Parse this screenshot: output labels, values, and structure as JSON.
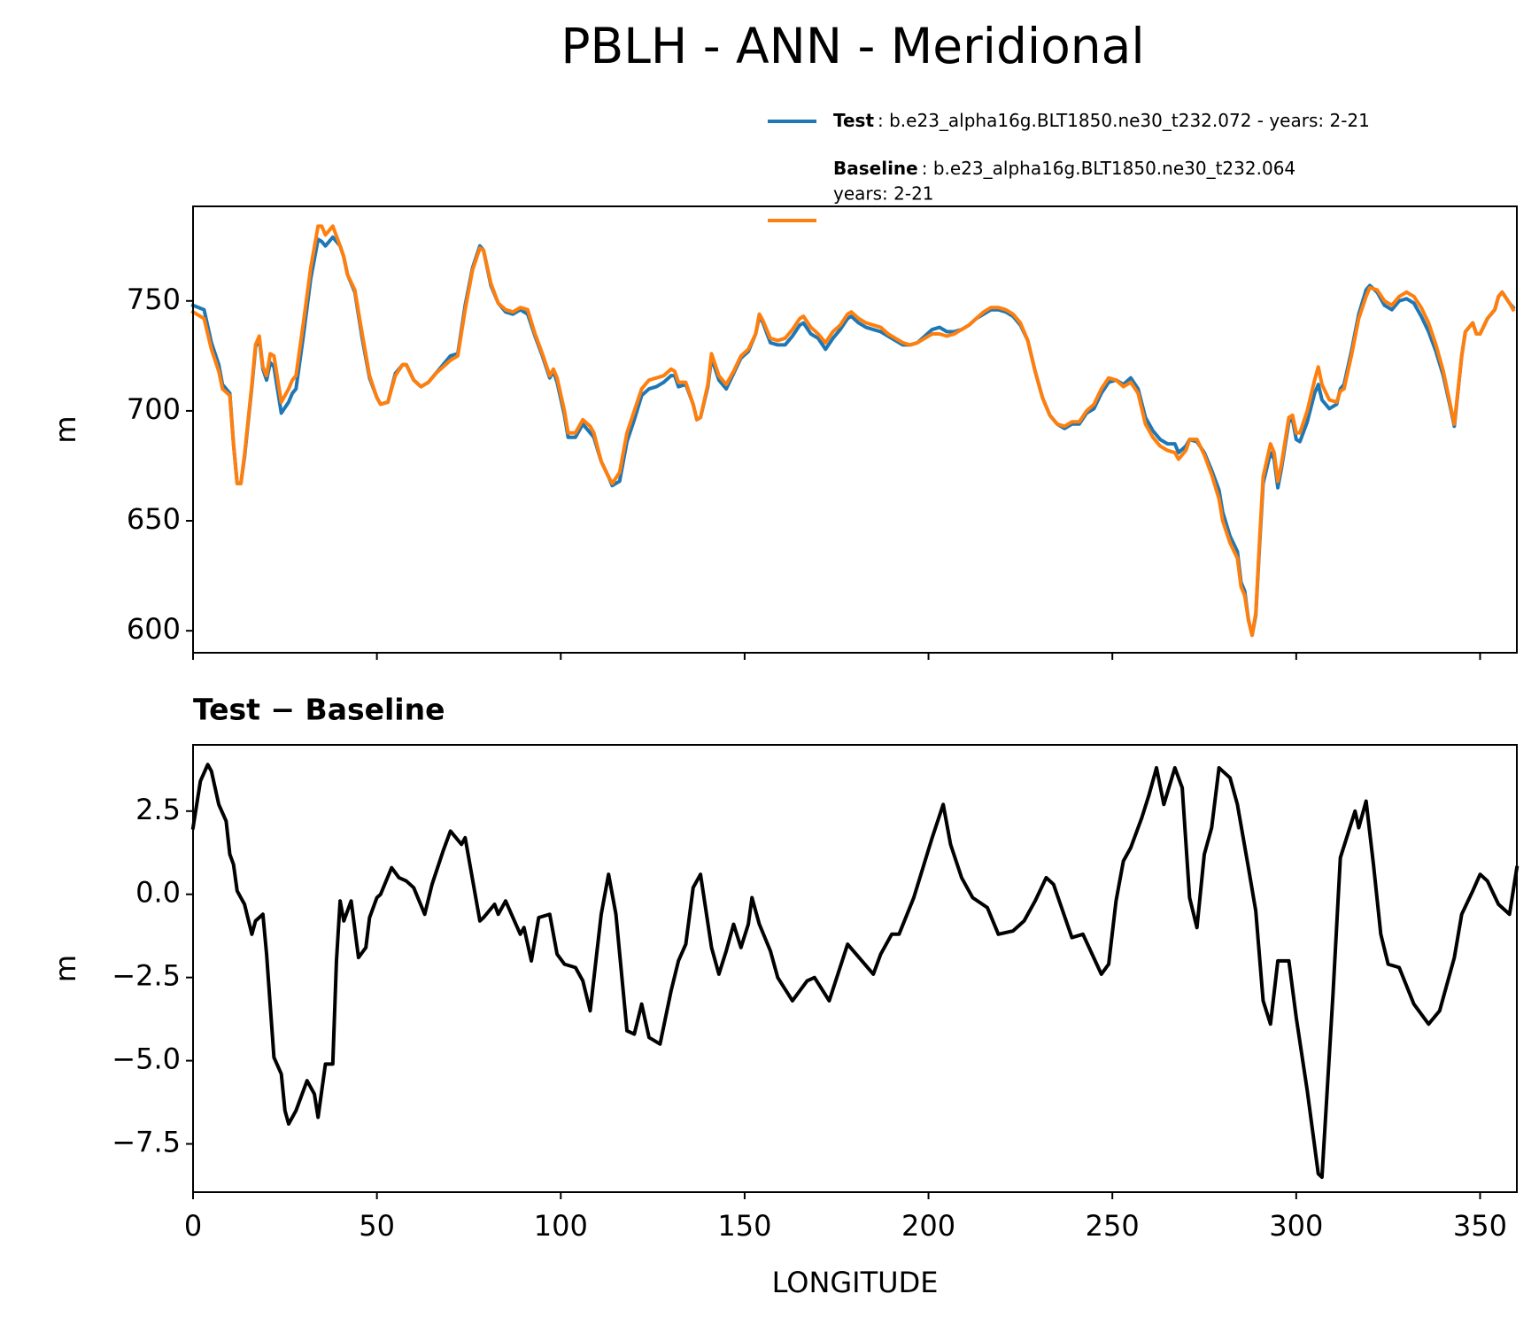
{
  "chart_data": [
    {
      "type": "line",
      "title": "PBLH - ANN - Meridional",
      "ylabel": "m",
      "legend": "upper right",
      "xlim": [
        0,
        360
      ],
      "xticks": [
        0,
        50,
        100,
        150,
        200,
        250,
        300,
        350
      ],
      "ylim": [
        590,
        793
      ],
      "yticks": [
        600,
        650,
        700,
        750
      ],
      "x": [
        0,
        3,
        5,
        7,
        8,
        10,
        11,
        12,
        13,
        14,
        16,
        17,
        18,
        19,
        20,
        21,
        22,
        24,
        26,
        27,
        28,
        30,
        32,
        34,
        35,
        36,
        37,
        38,
        40,
        41,
        42,
        44,
        46,
        48,
        50,
        51,
        53,
        55,
        57,
        58,
        60,
        62,
        64,
        66,
        68,
        70,
        72,
        74,
        76,
        78,
        79,
        81,
        83,
        85,
        87,
        89,
        91,
        93,
        95,
        97,
        98,
        99,
        101,
        102,
        104,
        106,
        108,
        109,
        111,
        113,
        114,
        116,
        118,
        120,
        122,
        124,
        126,
        128,
        130,
        131,
        132,
        134,
        136,
        137,
        138,
        140,
        141,
        143,
        145,
        147,
        149,
        151,
        153,
        154,
        155,
        157,
        159,
        161,
        163,
        165,
        166,
        168,
        170,
        172,
        174,
        176,
        178,
        179,
        181,
        183,
        185,
        187,
        189,
        191,
        193,
        195,
        197,
        199,
        201,
        203,
        205,
        207,
        209,
        211,
        213,
        215,
        217,
        219,
        221,
        223,
        225,
        227,
        229,
        231,
        233,
        235,
        237,
        239,
        241,
        243,
        245,
        247,
        249,
        251,
        253,
        255,
        257,
        259,
        261,
        263,
        265,
        267,
        268,
        270,
        271,
        273,
        275,
        277,
        279,
        280,
        282,
        284,
        285,
        286,
        287,
        288,
        289,
        290,
        291,
        293,
        294,
        295,
        296,
        298,
        299,
        300,
        301,
        303,
        305,
        306,
        307,
        309,
        311,
        312,
        313,
        315,
        317,
        319,
        320,
        322,
        324,
        326,
        328,
        330,
        332,
        334,
        336,
        338,
        340,
        342,
        343,
        345,
        346,
        348,
        349,
        350,
        352,
        354,
        355,
        356,
        358,
        359
      ],
      "series": [
        {
          "name": "Test",
          "description": [
            ": b.e23_alpha16g.BLT1850.ne30_t232.072 - years: 2-21"
          ],
          "color": "#1f77b4",
          "values": [
            748,
            746,
            731,
            721,
            712,
            708,
            685,
            667,
            667,
            679,
            711,
            729,
            733,
            719,
            714,
            722,
            720,
            699,
            704,
            708,
            710,
            734,
            760,
            778,
            777,
            775,
            777,
            779,
            775,
            770,
            762,
            754,
            733,
            715,
            706,
            703,
            704,
            717,
            721,
            721,
            714,
            711,
            713,
            717,
            721,
            725,
            726,
            748,
            765,
            775,
            773,
            757,
            749,
            745,
            744,
            746,
            744,
            734,
            725,
            715,
            718,
            713,
            698,
            688,
            688,
            694,
            690,
            688,
            677,
            670,
            666,
            668,
            686,
            696,
            707,
            710,
            711,
            713,
            716,
            716,
            711,
            712,
            703,
            696,
            697,
            711,
            724,
            714,
            710,
            717,
            724,
            727,
            735,
            743,
            740,
            731,
            730,
            730,
            734,
            739,
            740,
            735,
            733,
            728,
            733,
            737,
            742,
            743,
            740,
            738,
            737,
            736,
            734,
            732,
            730,
            730,
            731,
            734,
            737,
            738,
            736,
            736,
            737,
            739,
            742,
            744,
            746,
            746,
            745,
            743,
            739,
            732,
            718,
            706,
            698,
            694,
            692,
            694,
            694,
            699,
            701,
            708,
            713,
            714,
            712,
            715,
            710,
            697,
            691,
            687,
            685,
            685,
            681,
            684,
            687,
            686,
            681,
            673,
            664,
            654,
            643,
            636,
            622,
            618,
            605,
            598,
            607,
            638,
            667,
            681,
            678,
            665,
            674,
            695,
            696,
            687,
            686,
            695,
            708,
            712,
            705,
            701,
            703,
            710,
            712,
            727,
            744,
            755,
            757,
            754,
            748,
            746,
            750,
            751,
            749,
            743,
            736,
            727,
            716,
            701,
            693,
            725,
            736,
            740,
            735,
            735,
            742,
            746,
            752,
            754,
            749,
            747
          ]
        },
        {
          "name": "Baseline",
          "description": [
            ": b.e23_alpha16g.BLT1850.ne30_t232.064",
            "years: 2-21"
          ],
          "color": "#ff7f0e",
          "values": [
            745,
            742,
            728,
            718,
            710,
            707,
            685,
            667,
            667,
            680,
            712,
            730,
            734,
            720,
            716,
            726,
            725,
            704,
            710,
            714,
            716,
            740,
            765,
            784,
            784,
            780,
            782,
            784,
            775,
            770,
            762,
            755,
            735,
            716,
            706,
            703,
            704,
            716,
            721,
            721,
            714,
            711,
            713,
            717,
            720,
            723,
            725,
            746,
            764,
            774,
            773,
            758,
            749,
            746,
            745,
            747,
            746,
            735,
            726,
            716,
            719,
            715,
            700,
            690,
            690,
            696,
            693,
            690,
            677,
            670,
            667,
            672,
            690,
            700,
            710,
            714,
            715,
            716,
            719,
            718,
            713,
            713,
            703,
            696,
            697,
            712,
            726,
            716,
            712,
            718,
            725,
            728,
            735,
            744,
            741,
            733,
            732,
            733,
            737,
            742,
            743,
            738,
            735,
            731,
            736,
            739,
            744,
            745,
            742,
            740,
            739,
            738,
            735,
            733,
            731,
            730,
            731,
            733,
            735,
            735,
            734,
            735,
            737,
            739,
            742,
            745,
            747,
            747,
            746,
            744,
            740,
            732,
            718,
            706,
            698,
            694,
            693,
            695,
            695,
            700,
            703,
            710,
            715,
            714,
            711,
            713,
            708,
            694,
            688,
            684,
            682,
            681,
            678,
            682,
            687,
            687,
            680,
            671,
            660,
            650,
            640,
            633,
            620,
            616,
            605,
            598,
            608,
            640,
            670,
            685,
            681,
            668,
            676,
            697,
            698,
            690,
            690,
            700,
            714,
            720,
            712,
            705,
            704,
            709,
            710,
            725,
            742,
            752,
            756,
            755,
            750,
            748,
            752,
            754,
            752,
            747,
            740,
            730,
            718,
            702,
            694,
            725,
            736,
            740,
            735,
            735,
            742,
            746,
            752,
            754,
            749,
            746
          ]
        }
      ]
    },
    {
      "type": "line",
      "title": "Test − Baseline",
      "xlabel": "LONGITUDE",
      "ylabel": "m",
      "xlim": [
        0,
        360
      ],
      "xticks": [
        0,
        50,
        100,
        150,
        200,
        250,
        300,
        350
      ],
      "ylim": [
        -8.95,
        4.49
      ],
      "yticks": [
        {
          "value": -7.5,
          "label": "−7.5"
        },
        {
          "value": -5,
          "label": "−5.0"
        },
        {
          "value": -2.5,
          "label": "−2.5"
        },
        {
          "value": 0,
          "label": "0.0"
        },
        2.5
      ],
      "x": [
        0,
        2,
        4,
        5,
        7,
        9,
        10,
        11,
        12,
        14,
        16,
        17,
        19,
        20,
        22,
        24,
        25,
        26,
        28,
        31,
        33,
        34,
        36,
        38,
        39,
        40,
        41,
        43,
        45,
        47,
        48,
        50,
        51,
        54,
        56,
        58,
        60,
        63,
        65,
        68,
        70,
        73,
        74,
        78,
        79,
        82,
        83,
        85,
        87,
        89,
        90,
        92,
        94,
        97,
        99,
        101,
        104,
        106,
        108,
        111,
        113,
        115,
        118,
        120,
        122,
        124,
        127,
        130,
        132,
        134,
        136,
        138,
        141,
        143,
        145,
        147,
        149,
        151,
        152,
        154,
        157,
        159,
        163,
        167,
        169,
        173,
        178,
        185,
        187,
        190,
        192,
        196,
        201,
        204,
        206,
        209,
        212,
        216,
        219,
        223,
        226,
        229,
        232,
        234,
        239,
        242,
        247,
        249,
        251,
        253,
        255,
        258,
        260,
        262,
        264,
        267,
        269,
        271,
        273,
        275,
        277,
        279,
        282,
        284,
        287,
        289,
        291,
        293,
        295,
        298,
        300,
        303,
        306,
        307,
        310,
        312,
        316,
        317,
        319,
        321,
        323,
        325,
        328,
        332,
        336,
        339,
        343,
        345,
        348,
        350,
        352,
        355,
        357,
        358,
        360
      ],
      "series": [
        {
          "name": "Test − Baseline",
          "color": "#000000",
          "values": [
            2.0,
            3.4,
            3.9,
            3.7,
            2.7,
            2.2,
            1.2,
            0.9,
            0.1,
            -0.3,
            -1.2,
            -0.8,
            -0.6,
            -1.8,
            -4.9,
            -5.4,
            -6.5,
            -6.9,
            -6.5,
            -5.6,
            -6.0,
            -6.7,
            -5.1,
            -5.1,
            -2.0,
            -0.2,
            -0.8,
            -0.2,
            -1.9,
            -1.6,
            -0.7,
            -0.1,
            0.0,
            0.8,
            0.5,
            0.4,
            0.2,
            -0.6,
            0.3,
            1.3,
            1.9,
            1.5,
            1.7,
            -0.8,
            -0.7,
            -0.3,
            -0.6,
            -0.2,
            -0.7,
            -1.2,
            -1.0,
            -2.0,
            -0.7,
            -0.6,
            -1.8,
            -2.1,
            -2.2,
            -2.6,
            -3.5,
            -0.6,
            0.6,
            -0.6,
            -4.1,
            -4.2,
            -3.3,
            -4.3,
            -4.5,
            -2.9,
            -2.0,
            -1.5,
            0.2,
            0.6,
            -1.6,
            -2.4,
            -1.7,
            -0.9,
            -1.6,
            -0.9,
            -0.1,
            -0.9,
            -1.7,
            -2.5,
            -3.2,
            -2.6,
            -2.5,
            -3.2,
            -1.5,
            -2.4,
            -1.8,
            -1.2,
            -1.2,
            -0.1,
            1.7,
            2.7,
            1.5,
            0.5,
            -0.1,
            -0.4,
            -1.2,
            -1.1,
            -0.8,
            -0.2,
            0.5,
            0.3,
            -1.3,
            -1.2,
            -2.4,
            -2.1,
            -0.2,
            1.0,
            1.4,
            2.3,
            3.0,
            3.8,
            2.7,
            3.8,
            3.2,
            -0.1,
            -1.0,
            1.2,
            2.0,
            3.8,
            3.5,
            2.7,
            0.8,
            -0.5,
            -3.2,
            -3.9,
            -2.0,
            -2.0,
            -3.7,
            -5.9,
            -8.4,
            -8.5,
            -3.0,
            1.1,
            2.5,
            2.0,
            2.8,
            0.9,
            -1.2,
            -2.1,
            -2.2,
            -3.3,
            -3.9,
            -3.5,
            -1.9,
            -0.6,
            0.1,
            0.6,
            0.4,
            -0.3,
            -0.5,
            -0.6,
            0.8
          ]
        }
      ]
    }
  ]
}
